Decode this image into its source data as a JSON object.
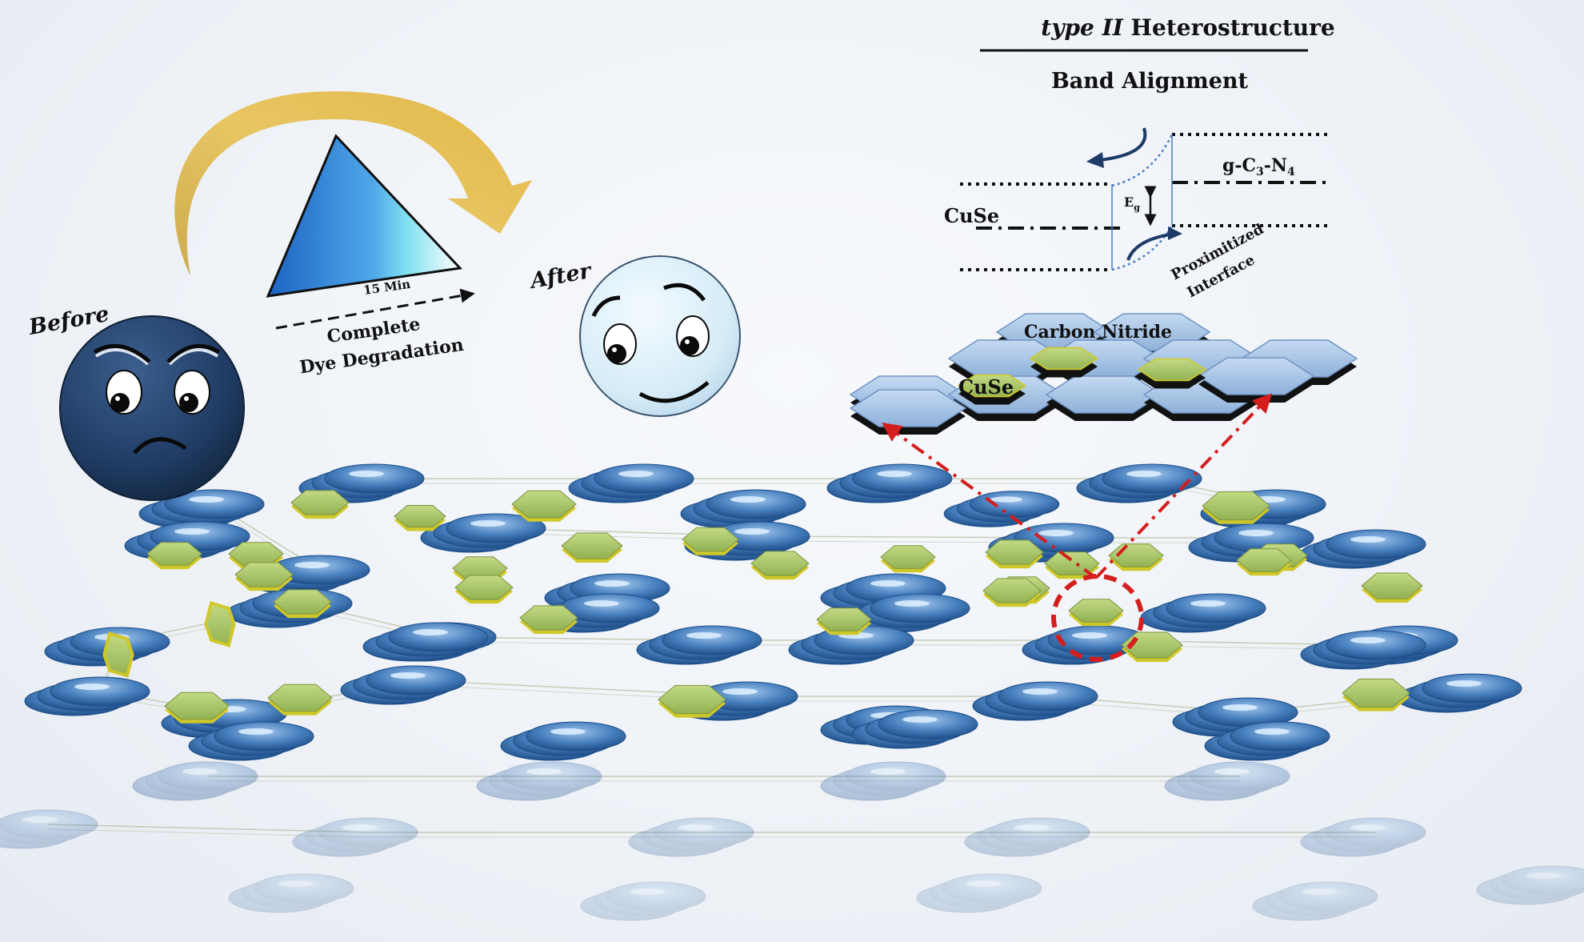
{
  "labels": {
    "before": "Before",
    "after": "After",
    "time": "15 Min",
    "process_line1": "Complete",
    "process_line2": "Dye Degradation",
    "heading_italic": "type II",
    "heading_rest": " Heterostructure",
    "subheading": "Band Alignment",
    "cuse_band": "CuSe",
    "gcn_g": "g-C",
    "gcn_3": "3",
    "gcn_n": "-N",
    "gcn_4": "4",
    "eg_e": "E",
    "eg_g": "g",
    "interface_line1": "Proximitized",
    "interface_line2": "Interface",
    "carbon_nitride": "Carbon Nitride",
    "cuse_sheet": "CuSe"
  },
  "colors": {
    "sad_face": "#1f3b63",
    "happy_face": "#d6ecf7",
    "arrow_gold": "#e0b23a",
    "triangle_blue": "#3a8fd6",
    "hexagon_green": "#a8c46a",
    "hexagon_edge": "#d9d332",
    "disc_blue": "#3d73b0",
    "sheet_blue": "#9cbde3",
    "red_marker": "#d41e1e",
    "band_navy": "#1e3a66"
  }
}
